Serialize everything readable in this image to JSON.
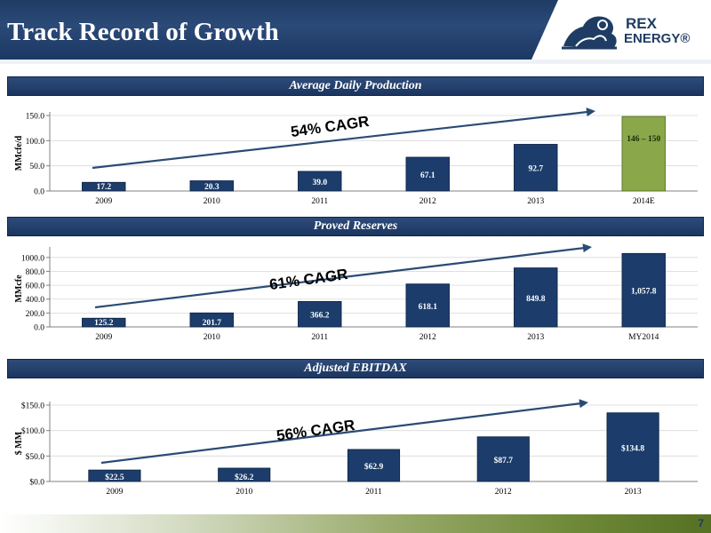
{
  "header": {
    "title": "Track Record of Growth",
    "logo_line1": "REX",
    "logo_line2": "ENERGY®"
  },
  "colors": {
    "bar": "#1c3d6b",
    "bar_highlight": "#8aa84a",
    "arrow": "#2a4b74",
    "band": "#1f3c64",
    "gridline": "#d9d9d9"
  },
  "chart_data": [
    {
      "type": "bar",
      "title": "Average Daily Production",
      "ylabel": "MMcfe/d",
      "ylim": [
        0,
        150
      ],
      "yticks": [
        0,
        50,
        100,
        150
      ],
      "ytick_labels": [
        "0.0",
        "50.0",
        "100.0",
        "150.0"
      ],
      "categories": [
        "2009",
        "2010",
        "2011",
        "2012",
        "2013",
        "2014E"
      ],
      "values": [
        17.2,
        20.3,
        39.0,
        67.1,
        92.7,
        148
      ],
      "data_labels": [
        "17.2",
        "20.3",
        "39.0",
        "67.1",
        "92.7",
        "146 – 150"
      ],
      "highlight_index": 5,
      "annotation": "54% CAGR"
    },
    {
      "type": "bar",
      "title": "Proved Reserves",
      "ylabel": "MMcfe",
      "ylim": [
        0,
        1100
      ],
      "yticks": [
        0,
        200,
        400,
        600,
        800,
        1000
      ],
      "ytick_labels": [
        "0.0",
        "200.0",
        "400.0",
        "600.0",
        "800.0",
        "1000.0"
      ],
      "categories": [
        "2009",
        "2010",
        "2011",
        "2012",
        "2013",
        "MY2014"
      ],
      "values": [
        125.2,
        201.7,
        366.2,
        618.1,
        849.8,
        1057.8
      ],
      "data_labels": [
        "125.2",
        "201.7",
        "366.2",
        "618.1",
        "849.8",
        "1,057.8"
      ],
      "highlight_index": -1,
      "annotation": "61% CAGR"
    },
    {
      "type": "bar",
      "title": "Adjusted EBITDAX",
      "ylabel": "$ MM",
      "ylim": [
        0,
        150
      ],
      "yticks": [
        0,
        50,
        100,
        150
      ],
      "ytick_labels": [
        "$0.0",
        "$50.0",
        "$100.0",
        "$150.0"
      ],
      "categories": [
        "2009",
        "2010",
        "2011",
        "2012",
        "2013"
      ],
      "values": [
        22.5,
        26.2,
        62.9,
        87.7,
        134.8
      ],
      "data_labels": [
        "$22.5",
        "$26.2",
        "$62.9",
        "$87.7",
        "$134.8"
      ],
      "highlight_index": -1,
      "annotation": "56% CAGR"
    }
  ],
  "footer": {
    "page_number": "7"
  }
}
